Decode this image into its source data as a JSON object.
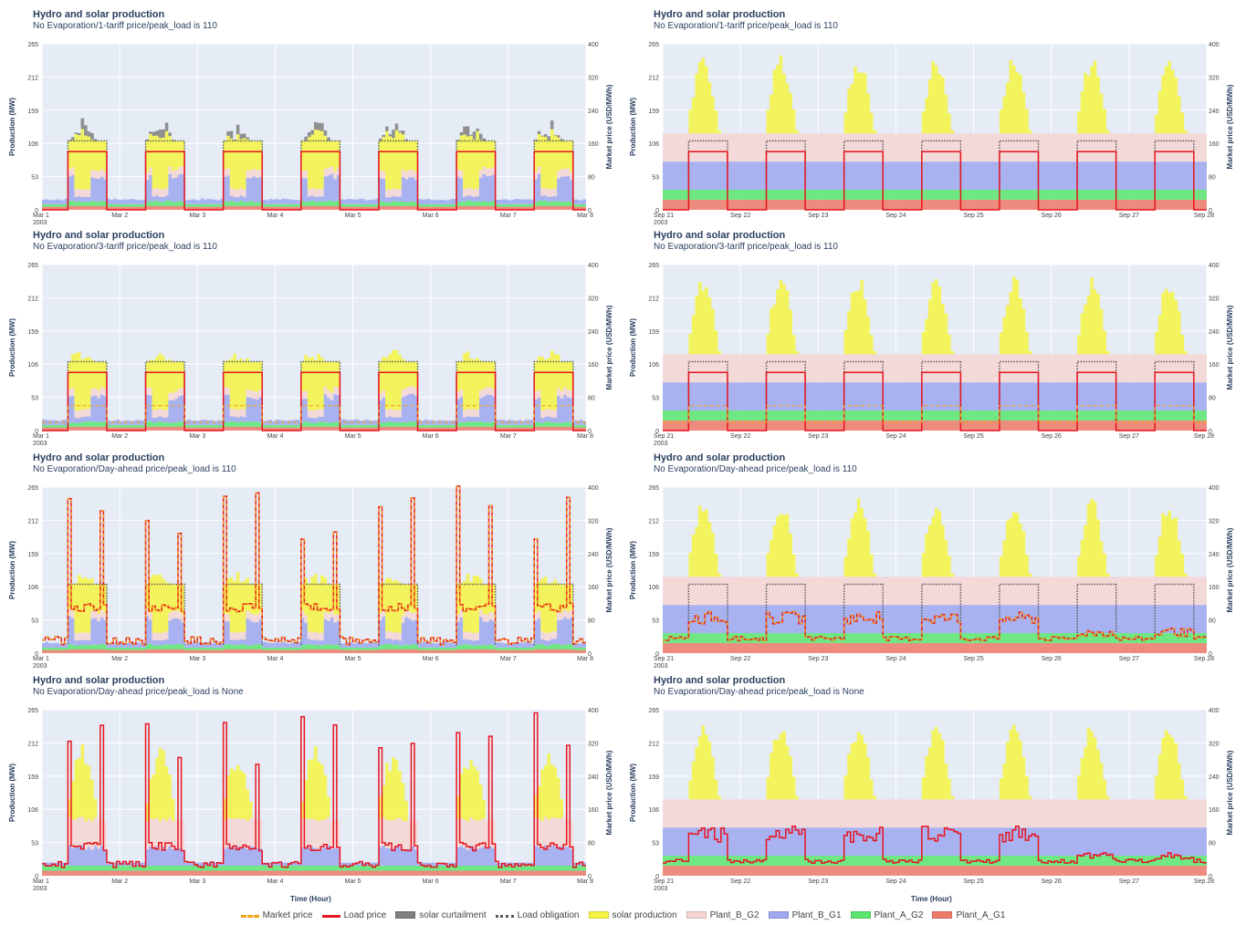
{
  "legend": [
    {
      "name": "Market price",
      "color": "#f2a21b",
      "style": "dash"
    },
    {
      "name": "Load price",
      "color": "#e8141e",
      "style": "line"
    },
    {
      "name": "solar curtailment",
      "color": "#808080",
      "style": "fill"
    },
    {
      "name": "Load obligation",
      "color": "#555555",
      "style": "dot"
    },
    {
      "name": "solar production",
      "color": "#f5f542",
      "style": "fill"
    },
    {
      "name": "Plant_B_G2",
      "color": "#f6d6d2",
      "style": "fill"
    },
    {
      "name": "Plant_B_G1",
      "color": "#9fa8f0",
      "style": "fill"
    },
    {
      "name": "Plant_A_G2",
      "color": "#5be66f",
      "style": "fill"
    },
    {
      "name": "Plant_A_G1",
      "color": "#f07a6a",
      "style": "fill"
    }
  ],
  "x_title": "Time (Hour)",
  "chart_data": [
    {
      "type": "area",
      "title": "Hydro and solar production",
      "subtitle": "No Evaporation/1-tariff price/peak_load is 110",
      "season": "march",
      "variant": "1tariff",
      "ylabel": "Production (MW)",
      "y2label": "Market price (USD/MWh)",
      "ylim": [
        0,
        265
      ],
      "y2lim": [
        0,
        400
      ],
      "yticks": [
        "0",
        "53",
        "106",
        "159",
        "212",
        "265"
      ],
      "y2ticks": [
        "0",
        "80",
        "160",
        "240",
        "320",
        "400"
      ],
      "xticks": [
        "Mar 1\n2003",
        "Mar 2",
        "Mar 3",
        "Mar 4",
        "Mar 5",
        "Mar 6",
        "Mar 7",
        "Mar 8"
      ],
      "peak_load": 110,
      "load_price": 140
    },
    {
      "type": "area",
      "title": "Hydro and solar production",
      "subtitle": "No Evaporation/1-tariff price/peak_load is 110",
      "season": "sept",
      "variant": "1tariff",
      "ylabel": "Production (MW)",
      "y2label": "Market price (USD/MWh)",
      "ylim": [
        0,
        265
      ],
      "y2lim": [
        0,
        400
      ],
      "yticks": [
        "0",
        "53",
        "106",
        "159",
        "212",
        "265"
      ],
      "y2ticks": [
        "0",
        "80",
        "160",
        "240",
        "320",
        "400"
      ],
      "xticks": [
        "Sep 21\n2003",
        "Sep 22",
        "Sep 23",
        "Sep 24",
        "Sep 25",
        "Sep 26",
        "Sep 27",
        "Sep 28"
      ],
      "peak_load": 110,
      "load_price": 140
    },
    {
      "type": "area",
      "title": "Hydro and solar production",
      "subtitle": "No Evaporation/3-tariff price/peak_load is 110",
      "season": "march",
      "variant": "3tariff",
      "ylabel": "Production (MW)",
      "y2label": "Market price (USD/MWh)",
      "ylim": [
        0,
        265
      ],
      "y2lim": [
        0,
        400
      ],
      "yticks": [
        "0",
        "53",
        "106",
        "159",
        "212",
        "265"
      ],
      "y2ticks": [
        "0",
        "80",
        "160",
        "240",
        "320",
        "400"
      ],
      "xticks": [
        "Mar 1\n2003",
        "Mar 2",
        "Mar 3",
        "Mar 4",
        "Mar 5",
        "Mar 6",
        "Mar 7",
        "Mar 8"
      ],
      "peak_load": 110,
      "load_price": 140
    },
    {
      "type": "area",
      "title": "Hydro and solar production",
      "subtitle": "No Evaporation/3-tariff price/peak_load is 110",
      "season": "sept",
      "variant": "3tariff",
      "ylabel": "Production (MW)",
      "y2label": "Market price (USD/MWh)",
      "ylim": [
        0,
        265
      ],
      "y2lim": [
        0,
        400
      ],
      "yticks": [
        "0",
        "53",
        "106",
        "159",
        "212",
        "265"
      ],
      "y2ticks": [
        "0",
        "80",
        "160",
        "240",
        "320",
        "400"
      ],
      "xticks": [
        "Sep 21\n2003",
        "Sep 22",
        "Sep 23",
        "Sep 24",
        "Sep 25",
        "Sep 26",
        "Sep 27",
        "Sep 28"
      ],
      "peak_load": 110,
      "load_price": 140
    },
    {
      "type": "area",
      "title": "Hydro and solar production",
      "subtitle": "No Evaporation/Day-ahead price/peak_load is 110",
      "season": "march",
      "variant": "dayahead",
      "ylabel": "Production (MW)",
      "y2label": "Market price (USD/MWh)",
      "ylim": [
        0,
        265
      ],
      "y2lim": [
        0,
        400
      ],
      "yticks": [
        "0",
        "53",
        "106",
        "159",
        "212",
        "265"
      ],
      "y2ticks": [
        "0",
        "80",
        "160",
        "240",
        "320",
        "400"
      ],
      "xticks": [
        "Mar 1\n2003",
        "Mar 2",
        "Mar 3",
        "Mar 4",
        "Mar 5",
        "Mar 6",
        "Mar 7",
        "Mar 8"
      ],
      "peak_load": 110
    },
    {
      "type": "area",
      "title": "Hydro and solar production",
      "subtitle": "No Evaporation/Day-ahead price/peak_load is 110",
      "season": "sept",
      "variant": "dayahead",
      "ylabel": "Production (MW)",
      "y2label": "Market price (USD/MWh)",
      "ylim": [
        0,
        265
      ],
      "y2lim": [
        0,
        400
      ],
      "yticks": [
        "0",
        "53",
        "106",
        "159",
        "212",
        "265"
      ],
      "y2ticks": [
        "0",
        "80",
        "160",
        "240",
        "320",
        "400"
      ],
      "xticks": [
        "Sep 21\n2003",
        "Sep 22",
        "Sep 23",
        "Sep 24",
        "Sep 25",
        "Sep 26",
        "Sep 27",
        "Sep 28"
      ],
      "peak_load": 110
    },
    {
      "type": "area",
      "title": "Hydro and solar production",
      "subtitle": "No Evaporation/Day-ahead price/peak_load is None",
      "season": "march",
      "variant": "none",
      "ylabel": "Production (MW)",
      "y2label": "Market price (USD/MWh)",
      "ylim": [
        0,
        265
      ],
      "y2lim": [
        0,
        400
      ],
      "yticks": [
        "0",
        "53",
        "106",
        "159",
        "212",
        "265"
      ],
      "y2ticks": [
        "0",
        "80",
        "160",
        "240",
        "320",
        "400"
      ],
      "xticks": [
        "Mar 1\n2003",
        "Mar 2",
        "Mar 3",
        "Mar 4",
        "Mar 5",
        "Mar 6",
        "Mar 7",
        "Mar 8"
      ]
    },
    {
      "type": "area",
      "title": "Hydro and solar production",
      "subtitle": "No Evaporation/Day-ahead price/peak_load is None",
      "season": "sept",
      "variant": "none",
      "ylabel": "Production (MW)",
      "y2label": "Market price (USD/MWh)",
      "ylim": [
        0,
        265
      ],
      "y2lim": [
        0,
        400
      ],
      "yticks": [
        "0",
        "53",
        "106",
        "159",
        "212",
        "265"
      ],
      "y2ticks": [
        "0",
        "80",
        "160",
        "240",
        "320",
        "400"
      ],
      "xticks": [
        "Sep 21\n2003",
        "Sep 22",
        "Sep 23",
        "Sep 24",
        "Sep 25",
        "Sep 26",
        "Sep 27",
        "Sep 28"
      ]
    }
  ]
}
